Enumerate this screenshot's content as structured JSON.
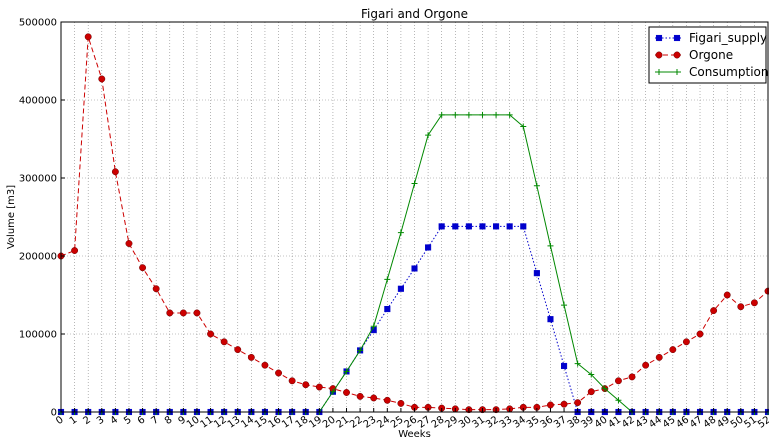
{
  "chart_data": {
    "type": "line",
    "title": "Figari and Orgone",
    "xlabel": "Weeks",
    "ylabel": "Volume [m3]",
    "xlim": [
      0,
      52
    ],
    "ylim": [
      0,
      500000
    ],
    "xticks": [
      0,
      1,
      2,
      3,
      4,
      5,
      6,
      7,
      8,
      9,
      10,
      11,
      12,
      13,
      14,
      15,
      16,
      17,
      18,
      19,
      20,
      21,
      22,
      23,
      24,
      25,
      26,
      27,
      28,
      29,
      30,
      31,
      32,
      33,
      34,
      35,
      36,
      37,
      38,
      39,
      40,
      41,
      42,
      43,
      44,
      45,
      46,
      47,
      48,
      49,
      50,
      51,
      52
    ],
    "xtick_labels": [
      "0",
      "1",
      "2",
      "3",
      "4",
      "5",
      "6",
      "7",
      "8",
      "9",
      "10",
      "11",
      "12",
      "13",
      "14",
      "15",
      "16",
      "17",
      "18",
      "19",
      "20",
      "21",
      "22",
      "23",
      "24",
      "25",
      "26",
      "27",
      "28",
      "29",
      "30",
      "31",
      "32",
      "33",
      "34",
      "35",
      "36",
      "37",
      "38",
      "39",
      "40",
      "41",
      "42",
      "43",
      "44",
      "45",
      "46",
      "47",
      "48",
      "49",
      "50",
      "51",
      "52"
    ],
    "yticks": [
      0,
      100000,
      200000,
      300000,
      400000,
      500000
    ],
    "ytick_labels": [
      "0",
      "100000",
      "200000",
      "300000",
      "400000",
      "500000"
    ],
    "grid": true,
    "legend_position": "top-right",
    "x": [
      0,
      1,
      2,
      3,
      4,
      5,
      6,
      7,
      8,
      9,
      10,
      11,
      12,
      13,
      14,
      15,
      16,
      17,
      18,
      19,
      20,
      21,
      22,
      23,
      24,
      25,
      26,
      27,
      28,
      29,
      30,
      31,
      32,
      33,
      34,
      35,
      36,
      37,
      38,
      39,
      40,
      41,
      42,
      43,
      44,
      45,
      46,
      47,
      48,
      49,
      50,
      51,
      52
    ],
    "series": [
      {
        "name": "Figari_supply",
        "color": "#0000cc",
        "marker": "square",
        "line_style": "dotted",
        "values": [
          0,
          0,
          0,
          0,
          0,
          0,
          0,
          0,
          0,
          0,
          0,
          0,
          0,
          0,
          0,
          0,
          0,
          0,
          0,
          0,
          26000,
          52000,
          79000,
          105000,
          132000,
          158000,
          184000,
          211000,
          238000,
          238000,
          238000,
          238000,
          238000,
          238000,
          238000,
          178000,
          119000,
          59000,
          0,
          0,
          0,
          0,
          0,
          0,
          0,
          0,
          0,
          0,
          0,
          0,
          0,
          0,
          0
        ]
      },
      {
        "name": "Orgone",
        "color": "#cc0000",
        "marker": "circle",
        "line_style": "dashed",
        "values": [
          200000,
          207000,
          481000,
          427000,
          308000,
          216000,
          185000,
          158000,
          127000,
          127000,
          127000,
          100000,
          90000,
          80000,
          70000,
          60000,
          50000,
          40000,
          35000,
          32000,
          30000,
          25000,
          20000,
          18000,
          15000,
          11000,
          6000,
          6000,
          5000,
          4000,
          3000,
          3000,
          3000,
          4000,
          6000,
          6000,
          9000,
          10000,
          12000,
          26000,
          30000,
          40000,
          45000,
          60000,
          70000,
          80000,
          90000,
          100000,
          130000,
          150000,
          135000,
          140000,
          155000
        ]
      },
      {
        "name": "Consumption",
        "color": "#008800",
        "marker": "plus",
        "line_style": "solid",
        "values": [
          0,
          0,
          0,
          0,
          0,
          0,
          0,
          0,
          0,
          0,
          0,
          0,
          0,
          0,
          0,
          0,
          0,
          0,
          0,
          0,
          26000,
          52000,
          79000,
          110000,
          170000,
          230000,
          293000,
          355000,
          381000,
          381000,
          381000,
          381000,
          381000,
          381000,
          366000,
          290000,
          213000,
          137000,
          62000,
          48000,
          30000,
          15000,
          0,
          0,
          0,
          0,
          0,
          0,
          0,
          0,
          0,
          0,
          0
        ]
      }
    ]
  }
}
